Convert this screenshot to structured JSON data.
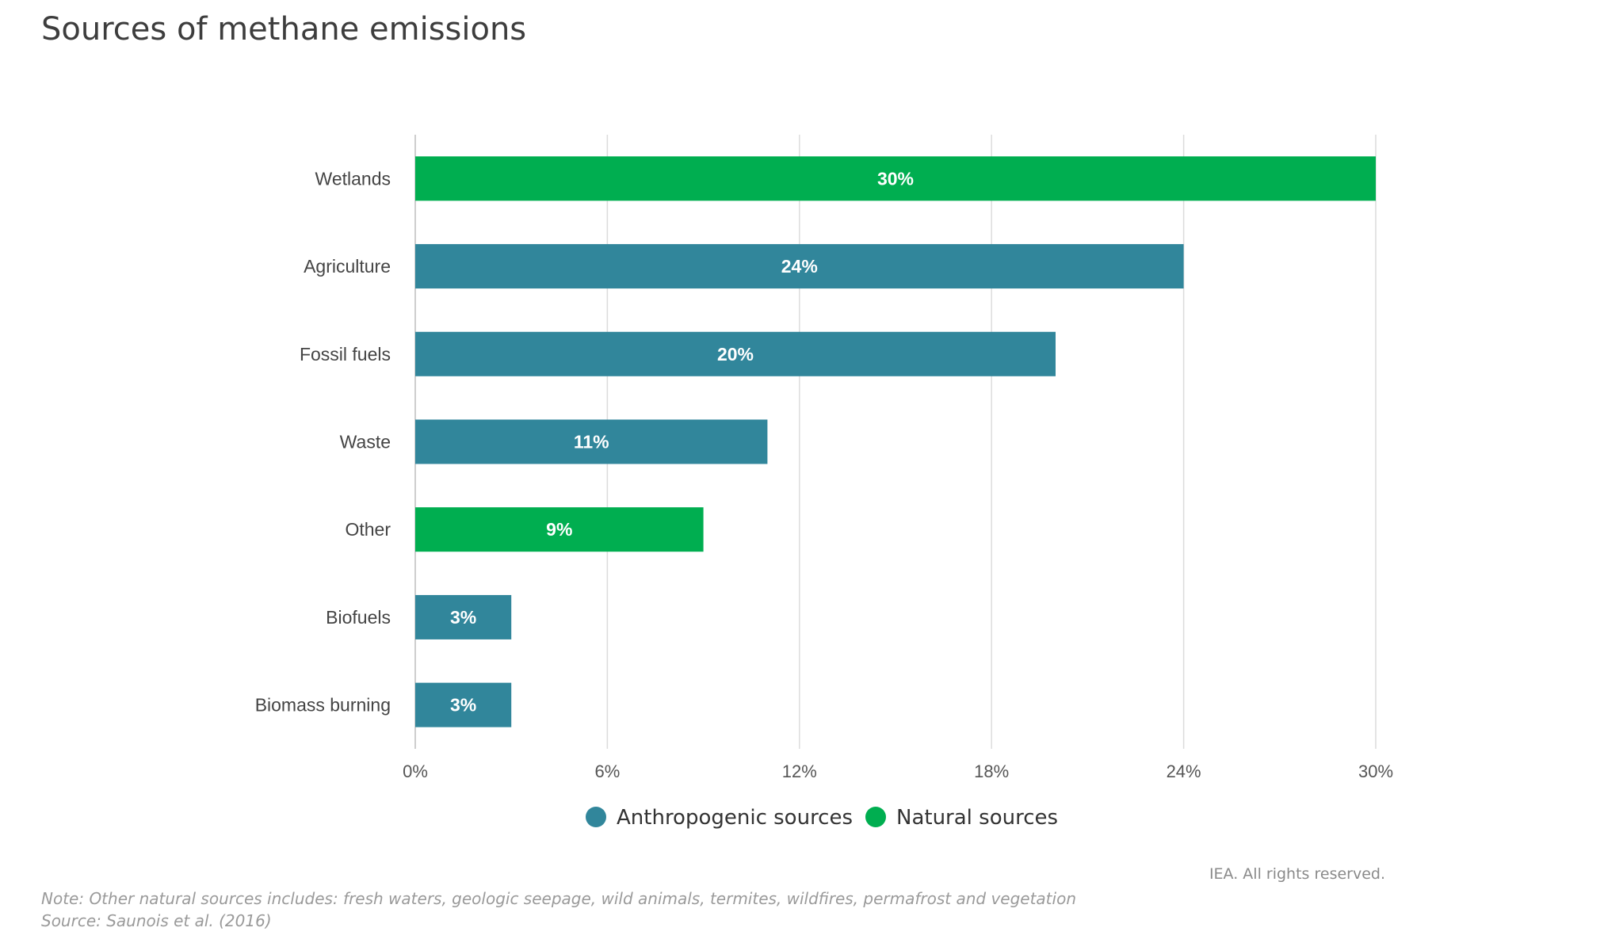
{
  "title": "Sources of methane emissions",
  "chart_data": {
    "type": "bar",
    "orientation": "horizontal",
    "categories": [
      "Wetlands",
      "Agriculture",
      "Fossil fuels",
      "Waste",
      "Other",
      "Biofuels",
      "Biomass burning"
    ],
    "values": [
      30,
      24,
      20,
      11,
      9,
      3,
      3
    ],
    "value_labels": [
      "30%",
      "24%",
      "20%",
      "11%",
      "9%",
      "3%",
      "3%"
    ],
    "groups": [
      "natural",
      "anthropogenic",
      "anthropogenic",
      "anthropogenic",
      "natural",
      "anthropogenic",
      "anthropogenic"
    ],
    "xlim": [
      0,
      30
    ],
    "xticks": [
      0,
      6,
      12,
      18,
      24,
      30
    ],
    "xtick_labels": [
      "0%",
      "6%",
      "12%",
      "18%",
      "24%",
      "30%"
    ],
    "grid": "vertical",
    "legend": {
      "placement": "bottom-center",
      "entries": [
        {
          "key": "anthropogenic",
          "label": "Anthropogenic sources",
          "color": "#31869b"
        },
        {
          "key": "natural",
          "label": "Natural sources",
          "color": "#00ae50"
        }
      ]
    }
  },
  "footer": {
    "rights": "IEA. All rights reserved.",
    "note": "Note: Other natural sources includes: fresh waters, geologic seepage, wild animals, termites, wildfires, permafrost and vegetation",
    "source": "Source: Saunois et al. (2016)"
  }
}
